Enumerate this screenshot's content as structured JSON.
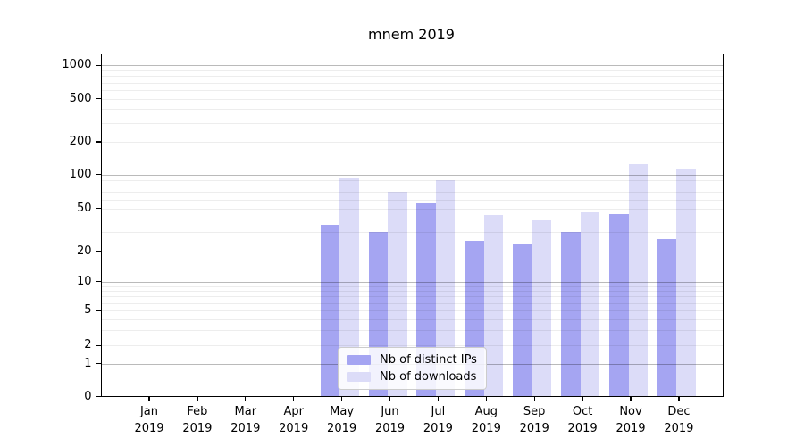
{
  "chart_data": {
    "type": "bar",
    "title": "mnem 2019",
    "categories": [
      "Jan 2019",
      "Feb 2019",
      "Mar 2019",
      "Apr 2019",
      "May 2019",
      "Jun 2019",
      "Jul 2019",
      "Aug 2019",
      "Sep 2019",
      "Oct 2019",
      "Nov 2019",
      "Dec 2019"
    ],
    "series": [
      {
        "name": "Nb of distinct IPs",
        "color": "#a5a5f2",
        "values": [
          0,
          0,
          0,
          0,
          35,
          30,
          55,
          25,
          23,
          30,
          44,
          26
        ]
      },
      {
        "name": "Nb of downloads",
        "color": "#dcdcf8",
        "values": [
          0,
          0,
          0,
          0,
          95,
          70,
          90,
          43,
          39,
          46,
          125,
          112
        ]
      }
    ],
    "yscale": "symlog",
    "yticks": [
      0,
      1,
      2,
      5,
      10,
      20,
      50,
      100,
      200,
      500,
      1000
    ],
    "ylim": [
      0,
      1300
    ],
    "xlabel": "",
    "ylabel": "",
    "grid": true,
    "legend_position": "lower center",
    "background": "#ffffff"
  }
}
